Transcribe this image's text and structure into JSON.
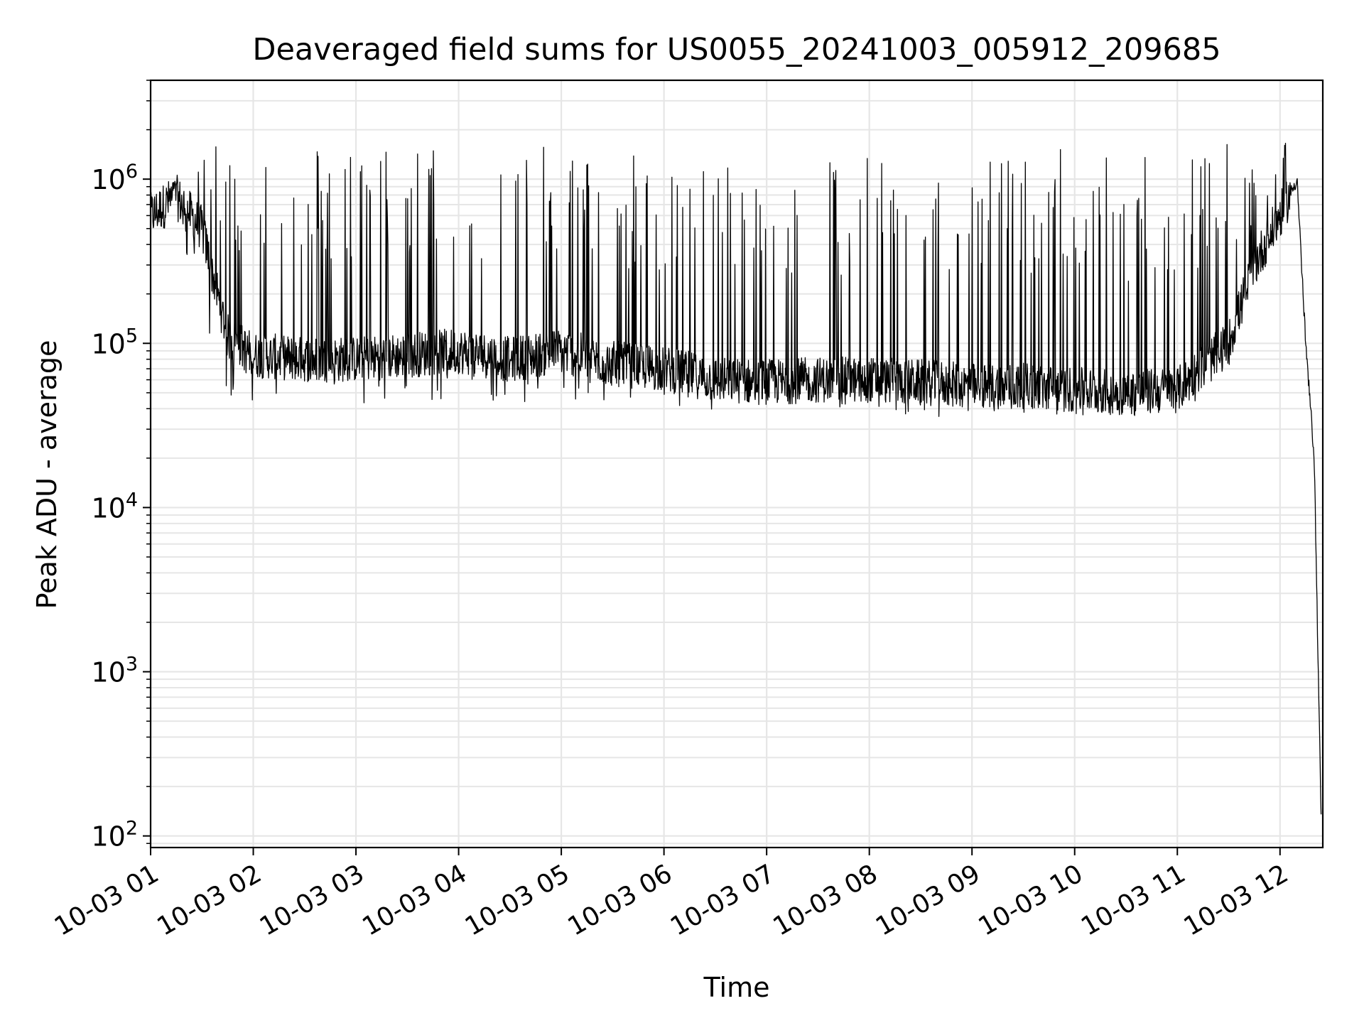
{
  "chart_data": {
    "type": "line",
    "title": "Deaveraged field sums for US0055_20241003_005912_209685",
    "xlabel": "Time",
    "ylabel": "Peak ADU - average",
    "x_tick_labels": [
      "10-03 01",
      "10-03 02",
      "10-03 03",
      "10-03 04",
      "10-03 05",
      "10-03 06",
      "10-03 07",
      "10-03 08",
      "10-03 09",
      "10-03 10",
      "10-03 11",
      "10-03 12"
    ],
    "y_scale": "log",
    "y_ticks": [
      100,
      1000,
      10000,
      100000,
      1000000
    ],
    "y_tick_labels": [
      {
        "base": "10",
        "exp": "2"
      },
      {
        "base": "10",
        "exp": "3"
      },
      {
        "base": "10",
        "exp": "4"
      },
      {
        "base": "10",
        "exp": "5"
      },
      {
        "base": "10",
        "exp": "6"
      }
    ],
    "xlim": [
      "2024-10-03 01:00",
      "2024-10-03 12:25"
    ],
    "ylim": [
      85,
      4000000
    ],
    "grid": true,
    "line_color": "#000000",
    "grid_color": "#e6e6e6",
    "series": [
      {
        "x": [
          "2024-10-03 01:00",
          "2024-10-03 01:15",
          "2024-10-03 01:30",
          "2024-10-03 01:45",
          "2024-10-03 02:00",
          "2024-10-03 02:30",
          "2024-10-03 03:00",
          "2024-10-03 03:30",
          "2024-10-03 04:00",
          "2024-10-03 04:30",
          "2024-10-03 05:00",
          "2024-10-03 05:30",
          "2024-10-03 06:00",
          "2024-10-03 06:30",
          "2024-10-03 07:00",
          "2024-10-03 07:30",
          "2024-10-03 08:00",
          "2024-10-03 08:30",
          "2024-10-03 09:00",
          "2024-10-03 09:30",
          "2024-10-03 10:00",
          "2024-10-03 10:30",
          "2024-10-03 11:00",
          "2024-10-03 11:30",
          "2024-10-03 11:45",
          "2024-10-03 12:00",
          "2024-10-03 12:10",
          "2024-10-03 12:15",
          "2024-10-03 12:20",
          "2024-10-03 12:24"
        ],
        "baseline": [
          600000,
          780000,
          500000,
          110000,
          85000,
          80000,
          80000,
          85000,
          90000,
          80000,
          90000,
          75000,
          70000,
          60000,
          58000,
          60000,
          60000,
          58000,
          55000,
          55000,
          52000,
          50000,
          52000,
          100000,
          300000,
          600000,
          1000000,
          100000,
          20000,
          130
        ],
        "spike_max": [
          700000,
          1000000,
          1700000,
          1500000,
          1700000,
          1700000,
          1650000,
          1650000,
          1600000,
          1600000,
          1600000,
          1500000,
          1450000,
          1400000,
          1300000,
          1450000,
          1500000,
          1600000,
          1700000,
          1600000,
          1600000,
          1600000,
          1650000,
          1700000,
          1100000,
          1400000,
          2400000,
          900000,
          40000,
          130
        ],
        "dip_min": [
          500000,
          550000,
          150000,
          45000,
          45000,
          45000,
          42000,
          45000,
          45000,
          45000,
          42000,
          42000,
          40000,
          38000,
          35000,
          40000,
          40000,
          35000,
          35000,
          38000,
          35000,
          35000,
          38000,
          60000,
          250000,
          500000,
          800000,
          80000,
          3000,
          130
        ]
      }
    ]
  }
}
